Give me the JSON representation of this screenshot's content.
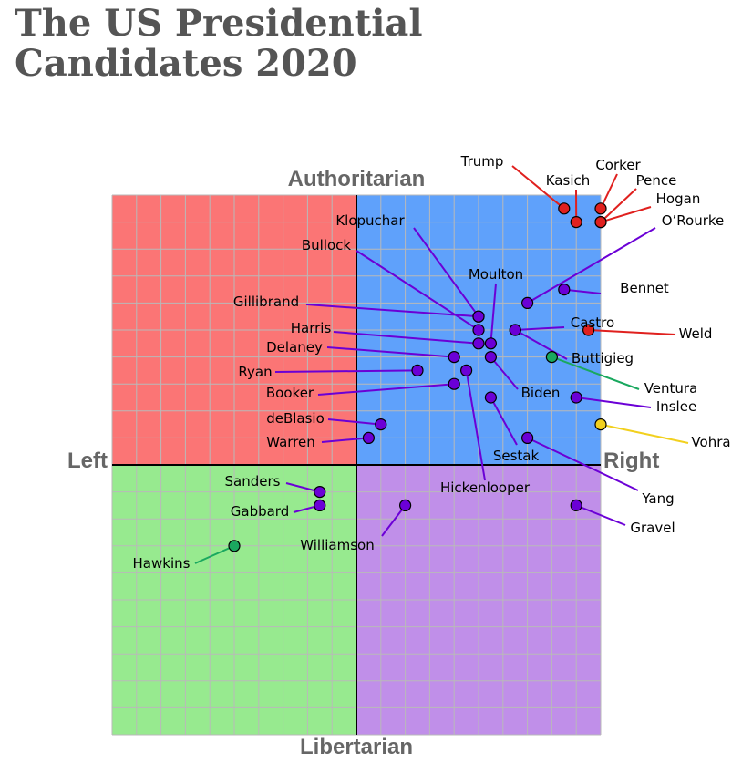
{
  "title_line1": "The US Presidential",
  "title_line2": "Candidates 2020",
  "chart_data": {
    "type": "scatter",
    "title": "The US Presidential Candidates 2020",
    "axes": {
      "top": "Authoritarian",
      "bottom": "Libertarian",
      "left": "Left",
      "right": "Right"
    },
    "xlim": [
      -10,
      10
    ],
    "ylim": [
      -10,
      10
    ],
    "grid": true,
    "quadrant_colors": {
      "auth_left": "#fb7575",
      "auth_right": "#5fa1fb",
      "lib_left": "#97ea8f",
      "lib_right": "#c08fe9"
    },
    "party_colors": {
      "Republican": "#e0201e",
      "Democrat": "#6b00d6",
      "Green": "#1aa85f",
      "Libertarian": "#f2d01e"
    },
    "points": [
      {
        "name": "Trump",
        "x": 8.5,
        "y": 9.5,
        "party": "Republican"
      },
      {
        "name": "Kasich",
        "x": 9.0,
        "y": 9.0,
        "party": "Republican"
      },
      {
        "name": "Corker",
        "x": 10.0,
        "y": 9.5,
        "party": "Republican"
      },
      {
        "name": "Pence",
        "x": 10.0,
        "y": 9.0,
        "party": "Republican"
      },
      {
        "name": "Hogan",
        "x": 10.0,
        "y": 9.0,
        "party": "Republican"
      },
      {
        "name": "O’Rourke",
        "x": 7.0,
        "y": 6.0,
        "party": "Democrat"
      },
      {
        "name": "Bennet",
        "x": 8.5,
        "y": 6.5,
        "party": "Democrat"
      },
      {
        "name": "Klopuchar",
        "x": 5.0,
        "y": 5.5,
        "party": "Democrat"
      },
      {
        "name": "Bullock",
        "x": 5.0,
        "y": 5.0,
        "party": "Democrat"
      },
      {
        "name": "Moulton",
        "x": 5.5,
        "y": 4.5,
        "party": "Democrat"
      },
      {
        "name": "Gillibrand",
        "x": 5.0,
        "y": 5.5,
        "party": "Democrat"
      },
      {
        "name": "Castro",
        "x": 6.5,
        "y": 5.0,
        "party": "Democrat"
      },
      {
        "name": "Harris",
        "x": 5.0,
        "y": 4.5,
        "party": "Democrat"
      },
      {
        "name": "Weld",
        "x": 9.5,
        "y": 5.0,
        "party": "Republican"
      },
      {
        "name": "Delaney",
        "x": 4.0,
        "y": 4.0,
        "party": "Democrat"
      },
      {
        "name": "Buttigieg",
        "x": 6.5,
        "y": 5.0,
        "party": "Democrat"
      },
      {
        "name": "Ventura",
        "x": 8.0,
        "y": 4.0,
        "party": "Green"
      },
      {
        "name": "Ryan",
        "x": 2.5,
        "y": 3.5,
        "party": "Democrat"
      },
      {
        "name": "Biden",
        "x": 5.5,
        "y": 4.0,
        "party": "Democrat"
      },
      {
        "name": "Booker",
        "x": 4.0,
        "y": 3.0,
        "party": "Democrat"
      },
      {
        "name": "Hickenlooper",
        "x": 4.5,
        "y": 3.5,
        "party": "Democrat"
      },
      {
        "name": "Inslee",
        "x": 9.0,
        "y": 2.5,
        "party": "Democrat"
      },
      {
        "name": "deBlasio",
        "x": 1.0,
        "y": 1.5,
        "party": "Democrat"
      },
      {
        "name": "Vohra",
        "x": 10.0,
        "y": 1.5,
        "party": "Libertarian"
      },
      {
        "name": "Warren",
        "x": 0.5,
        "y": 1.0,
        "party": "Democrat"
      },
      {
        "name": "Sestak",
        "x": 5.5,
        "y": 2.5,
        "party": "Democrat"
      },
      {
        "name": "Yang",
        "x": 7.0,
        "y": 1.0,
        "party": "Democrat"
      },
      {
        "name": "Sanders",
        "x": -1.5,
        "y": -1.0,
        "party": "Democrat"
      },
      {
        "name": "Gabbard",
        "x": -1.5,
        "y": -1.5,
        "party": "Democrat"
      },
      {
        "name": "Williamson",
        "x": 2.0,
        "y": -1.5,
        "party": "Democrat"
      },
      {
        "name": "Gravel",
        "x": 9.0,
        "y": -1.5,
        "party": "Democrat"
      },
      {
        "name": "Hawkins",
        "x": -5.0,
        "y": -3.0,
        "party": "Green"
      }
    ]
  }
}
